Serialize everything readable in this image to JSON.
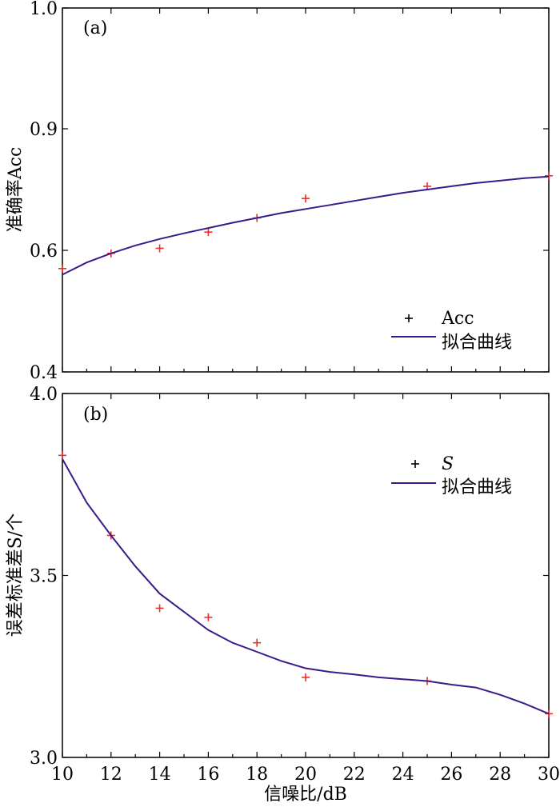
{
  "chart_data": [
    {
      "type": "line",
      "panel_label": "(a)",
      "ylabel": "准确率Acc",
      "x_ticks": [
        "10",
        "12",
        "14",
        "16",
        "18",
        "20",
        "22",
        "24",
        "26",
        "28",
        "30"
      ],
      "y_ticks": [
        "0.4",
        "0.6",
        "0.9",
        "1.0"
      ],
      "xlim": [
        10,
        30
      ],
      "legend": {
        "position": "bottom-right",
        "items": [
          "Acc",
          "拟合曲线"
        ]
      },
      "series": [
        {
          "name": "Acc",
          "style": "markers",
          "color": "#e8302a",
          "x": [
            10,
            12,
            14,
            16,
            18,
            20,
            25,
            30
          ],
          "y": [
            0.57,
            0.595,
            0.605,
            0.645,
            0.68,
            0.728,
            0.758,
            0.784
          ]
        },
        {
          "name": "拟合曲线",
          "style": "line",
          "color": "#3a1a8a",
          "x": [
            10,
            11,
            12,
            13,
            14,
            15,
            16,
            17,
            18,
            19,
            20,
            21,
            22,
            23,
            24,
            25,
            26,
            27,
            28,
            29,
            30
          ],
          "y": [
            0.56,
            0.58,
            0.595,
            0.612,
            0.628,
            0.642,
            0.655,
            0.668,
            0.68,
            0.692,
            0.702,
            0.712,
            0.722,
            0.732,
            0.742,
            0.75,
            0.758,
            0.766,
            0.772,
            0.778,
            0.782
          ]
        }
      ]
    },
    {
      "type": "line",
      "panel_label": "(b)",
      "ylabel": "误差标准差S/个",
      "xlabel": "信噪比/dB",
      "x_ticks": [
        "10",
        "12",
        "14",
        "16",
        "18",
        "20",
        "22",
        "24",
        "26",
        "28",
        "30"
      ],
      "y_ticks": [
        "3.0",
        "3.5",
        "4.0"
      ],
      "xlim": [
        10,
        30
      ],
      "ylim": [
        3.0,
        4.0
      ],
      "legend": {
        "position": "top-right",
        "items": [
          "S",
          "拟合曲线"
        ]
      },
      "series": [
        {
          "name": "S",
          "style": "markers",
          "color": "#e8302a",
          "x": [
            10,
            12,
            14,
            16,
            18,
            20,
            25,
            30
          ],
          "y": [
            3.83,
            3.61,
            3.41,
            3.385,
            3.315,
            3.22,
            3.21,
            3.12
          ]
        },
        {
          "name": "拟合曲线",
          "style": "line",
          "color": "#3a1a8a",
          "x": [
            10,
            11,
            12,
            13,
            14,
            15,
            16,
            17,
            18,
            19,
            20,
            21,
            22,
            23,
            24,
            25,
            26,
            27,
            28,
            29,
            30
          ],
          "y": [
            3.82,
            3.7,
            3.61,
            3.525,
            3.45,
            3.4,
            3.35,
            3.315,
            3.29,
            3.265,
            3.245,
            3.235,
            3.228,
            3.22,
            3.215,
            3.21,
            3.2,
            3.192,
            3.172,
            3.148,
            3.12
          ]
        }
      ]
    }
  ]
}
